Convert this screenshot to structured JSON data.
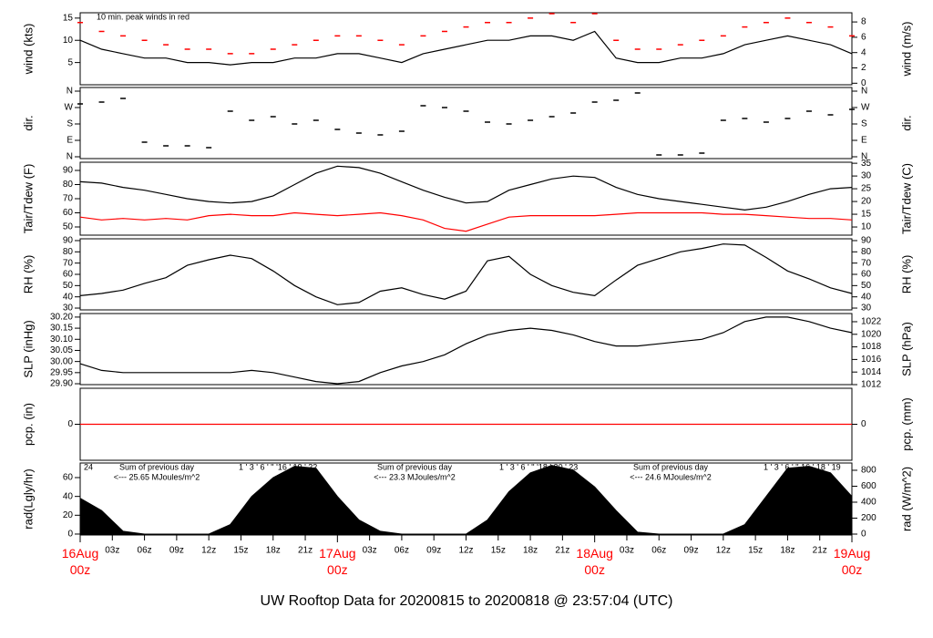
{
  "chart_data": [
    {
      "type": "line",
      "ylabel": "wind (kts)",
      "y2label": "wind (m/s)",
      "annotation": "10 min. peak winds in red",
      "xlim": [
        0,
        72
      ],
      "x": [
        0,
        2,
        4,
        6,
        8,
        10,
        12,
        14,
        16,
        18,
        20,
        22,
        24,
        26,
        28,
        30,
        32,
        34,
        36,
        38,
        40,
        42,
        44,
        46,
        48,
        50,
        52,
        54,
        56,
        58,
        60,
        62,
        64,
        66,
        68,
        70,
        72
      ],
      "ylim": [
        0,
        16.2
      ],
      "yticks": [
        5,
        10,
        15
      ],
      "y2lim": [
        -0.2,
        9.2
      ],
      "y2ticks": [
        0,
        2,
        4,
        6,
        8
      ],
      "series": [
        {
          "color": "#000000",
          "values": [
            10,
            8,
            7,
            6,
            6,
            5,
            5,
            4.5,
            5,
            5,
            6,
            6,
            7,
            7,
            6,
            5,
            7,
            8,
            9,
            10,
            10,
            11,
            11,
            10,
            12,
            6,
            5,
            5,
            6,
            6,
            7,
            9,
            10,
            11,
            10,
            9,
            7
          ]
        },
        {
          "color": "#ff0000",
          "marker": "dash",
          "values": [
            14,
            12,
            11,
            10,
            9,
            8,
            8,
            7,
            7,
            8,
            9,
            10,
            11,
            11,
            10,
            9,
            11,
            12,
            13,
            14,
            14,
            15,
            16,
            14,
            16,
            10,
            8,
            8,
            9,
            10,
            11,
            13,
            14,
            15,
            14,
            13,
            11
          ]
        }
      ]
    },
    {
      "type": "scatter",
      "ylabel": "dir.",
      "y2label": "dir.",
      "xlim": [
        0,
        72
      ],
      "x": [
        0,
        2,
        4,
        6,
        8,
        10,
        12,
        14,
        16,
        18,
        20,
        22,
        24,
        26,
        28,
        30,
        32,
        34,
        36,
        38,
        40,
        42,
        44,
        46,
        48,
        50,
        52,
        54,
        56,
        58,
        60,
        62,
        64,
        66,
        68,
        70,
        72
      ],
      "ylim": [
        -10,
        380
      ],
      "yticks": [
        {
          "value": 360,
          "label": "N"
        },
        {
          "value": 270,
          "label": "W"
        },
        {
          "value": 180,
          "label": "S"
        },
        {
          "value": 90,
          "label": "E"
        },
        {
          "value": 0,
          "label": "N"
        }
      ],
      "series": [
        {
          "color": "#000000",
          "values": [
            290,
            300,
            320,
            80,
            60,
            60,
            50,
            250,
            200,
            220,
            180,
            200,
            150,
            130,
            120,
            140,
            280,
            270,
            250,
            190,
            180,
            200,
            220,
            240,
            300,
            310,
            350,
            10,
            10,
            20,
            200,
            210,
            190,
            210,
            250,
            230,
            260
          ]
        }
      ]
    },
    {
      "type": "line",
      "ylabel": "Tair/Tdew (F)",
      "y2label": "Tair/Tdew (C)",
      "xlim": [
        0,
        72
      ],
      "x": [
        0,
        2,
        4,
        6,
        8,
        10,
        12,
        14,
        16,
        18,
        20,
        22,
        24,
        26,
        28,
        30,
        32,
        34,
        36,
        38,
        40,
        42,
        44,
        46,
        48,
        50,
        52,
        54,
        56,
        58,
        60,
        62,
        64,
        66,
        68,
        70,
        72
      ],
      "ylim": [
        44.2,
        95.8
      ],
      "yticks": [
        50,
        60,
        70,
        80,
        90
      ],
      "y2lim": [
        6.8,
        35.4
      ],
      "y2ticks": [
        10,
        15,
        20,
        25,
        30,
        35
      ],
      "series": [
        {
          "color": "#000000",
          "values": [
            82,
            81,
            78,
            76,
            73,
            70,
            68,
            67,
            68,
            72,
            80,
            88,
            93,
            92,
            88,
            82,
            76,
            71,
            67,
            68,
            76,
            80,
            84,
            86,
            85,
            78,
            73,
            70,
            68,
            66,
            64,
            62,
            64,
            68,
            73,
            77,
            78
          ]
        },
        {
          "color": "#ff0000",
          "values": [
            57,
            55,
            56,
            55,
            56,
            55,
            58,
            59,
            58,
            58,
            60,
            59,
            58,
            59,
            60,
            58,
            55,
            49,
            47,
            52,
            57,
            58,
            58,
            58,
            58,
            59,
            60,
            60,
            60,
            60,
            59,
            59,
            58,
            57,
            56,
            56,
            55
          ]
        }
      ]
    },
    {
      "type": "line",
      "ylabel": "RH (%)",
      "y2label": "RH (%)",
      "xlim": [
        0,
        72
      ],
      "x": [
        0,
        2,
        4,
        6,
        8,
        10,
        12,
        14,
        16,
        18,
        20,
        22,
        24,
        26,
        28,
        30,
        32,
        34,
        36,
        38,
        40,
        42,
        44,
        46,
        48,
        50,
        52,
        54,
        56,
        58,
        60,
        62,
        64,
        66,
        68,
        70,
        72
      ],
      "ylim": [
        28.4,
        91.6
      ],
      "yticks": [
        30,
        40,
        50,
        60,
        70,
        80,
        90
      ],
      "series": [
        {
          "color": "#000000",
          "values": [
            41,
            43,
            46,
            52,
            57,
            68,
            73,
            77,
            74,
            63,
            50,
            40,
            33,
            35,
            45,
            48,
            42,
            38,
            45,
            72,
            76,
            60,
            50,
            44,
            41,
            55,
            68,
            74,
            80,
            83,
            87,
            86,
            75,
            63,
            56,
            48,
            43
          ]
        }
      ]
    },
    {
      "type": "line",
      "ylabel": "SLP (inHg)",
      "y2label": "SLP (hPa)",
      "xlim": [
        0,
        72
      ],
      "x": [
        0,
        2,
        4,
        6,
        8,
        10,
        12,
        14,
        16,
        18,
        20,
        22,
        24,
        26,
        28,
        30,
        32,
        34,
        36,
        38,
        40,
        42,
        44,
        46,
        48,
        50,
        52,
        54,
        56,
        58,
        60,
        62,
        64,
        66,
        68,
        70,
        72
      ],
      "ylim": [
        29.896,
        30.216
      ],
      "yticks": [
        {
          "value": 29.9,
          "label": "29.90"
        },
        {
          "value": 29.95,
          "label": "29.95"
        },
        {
          "value": 30,
          "label": "30.00"
        },
        {
          "value": 30.05,
          "label": "30.05"
        },
        {
          "value": 30.1,
          "label": "30.10"
        },
        {
          "value": 30.15,
          "label": "30.15"
        },
        {
          "value": 30.2,
          "label": "30.20"
        }
      ],
      "y2lim": [
        1012,
        1023.3
      ],
      "y2ticks": [
        1012,
        1014,
        1016,
        1018,
        1020,
        1022
      ],
      "series": [
        {
          "color": "#000000",
          "values": [
            29.99,
            29.96,
            29.95,
            29.95,
            29.95,
            29.95,
            29.95,
            29.95,
            29.96,
            29.95,
            29.93,
            29.91,
            29.9,
            29.91,
            29.95,
            29.98,
            30,
            30.03,
            30.08,
            30.12,
            30.14,
            30.15,
            30.14,
            30.12,
            30.09,
            30.07,
            30.07,
            30.08,
            30.09,
            30.1,
            30.13,
            30.18,
            30.2,
            30.2,
            30.18,
            30.15,
            30.13
          ]
        }
      ]
    },
    {
      "type": "line",
      "ylabel": "pcp. (in)",
      "y2label": "pcp. (mm)",
      "xlim": [
        0,
        72
      ],
      "x": [
        0,
        72
      ],
      "ylim": [
        -1,
        1
      ],
      "yticks": [
        0
      ],
      "y2lim": [
        -1,
        1
      ],
      "y2ticks": [
        0
      ],
      "series": [
        {
          "color": "#ff0000",
          "values": [
            0,
            0
          ]
        }
      ]
    },
    {
      "type": "area",
      "ylabel": "rad(Lgly/hr)",
      "y2label": "rad (W/m^2)",
      "xlim": [
        0,
        72
      ],
      "x": [
        0,
        2,
        4,
        6,
        8,
        10,
        12,
        14,
        16,
        18,
        20,
        22,
        24,
        26,
        28,
        30,
        32,
        34,
        36,
        38,
        40,
        42,
        44,
        46,
        48,
        50,
        52,
        54,
        56,
        58,
        60,
        62,
        64,
        66,
        68,
        70,
        72
      ],
      "ylim": [
        -1,
        75.5
      ],
      "yticks": [
        0,
        20,
        40,
        60
      ],
      "y2lim": [
        -11.4,
        891
      ],
      "y2ticks": [
        0,
        200,
        400,
        600,
        800
      ],
      "series": [
        {
          "color": "#000000",
          "values": [
            38,
            25,
            3,
            0,
            0,
            0,
            0,
            10,
            40,
            60,
            72,
            70,
            40,
            15,
            3,
            0,
            0,
            0,
            0,
            15,
            45,
            65,
            73,
            68,
            50,
            25,
            2,
            0,
            0,
            0,
            0,
            10,
            40,
            70,
            72,
            65,
            40
          ]
        }
      ],
      "hour_notes": [
        "24",
        "1 ' 3 ' 6 ' '' '16 ' 19 ' 22",
        "1 ' 3 ' 6 ' '' '18 ' 20 ' 23",
        "1 ' 3 ' 6 ' '' 16 ' 18 ' 19"
      ],
      "annotations": [
        "Sum of previous day",
        "<--- 25.65 MJoules/m^2",
        "Sum of previous day",
        "<--- 23.3 MJoules/m^2",
        "Sum of previous day",
        "<--- 24.6 MJoules/m^2"
      ],
      "xticks": [
        {
          "value": 3,
          "label": "03z"
        },
        {
          "value": 6,
          "label": "06z"
        },
        {
          "value": 9,
          "label": "09z"
        },
        {
          "value": 12,
          "label": "12z"
        },
        {
          "value": 15,
          "label": "15z"
        },
        {
          "value": 18,
          "label": "18z"
        },
        {
          "value": 21,
          "label": "21z"
        },
        {
          "value": 27,
          "label": "03z"
        },
        {
          "value": 30,
          "label": "06z"
        },
        {
          "value": 33,
          "label": "09z"
        },
        {
          "value": 36,
          "label": "12z"
        },
        {
          "value": 39,
          "label": "15z"
        },
        {
          "value": 42,
          "label": "18z"
        },
        {
          "value": 45,
          "label": "21z"
        },
        {
          "value": 51,
          "label": "03z"
        },
        {
          "value": 54,
          "label": "06z"
        },
        {
          "value": 57,
          "label": "09z"
        },
        {
          "value": 60,
          "label": "12z"
        },
        {
          "value": 63,
          "label": "15z"
        },
        {
          "value": 66,
          "label": "18z"
        },
        {
          "value": 69,
          "label": "21z"
        }
      ],
      "date_ticks": [
        {
          "value": 0,
          "label": "16Aug 00z"
        },
        {
          "value": 24,
          "label": "17Aug 00z"
        },
        {
          "value": 48,
          "label": "18Aug 00z"
        },
        {
          "value": 72,
          "label": "19Aug 00z"
        }
      ],
      "title": "UW Rooftop Data for 20200815  to  20200818 @ 23:57:04  (UTC)"
    }
  ]
}
